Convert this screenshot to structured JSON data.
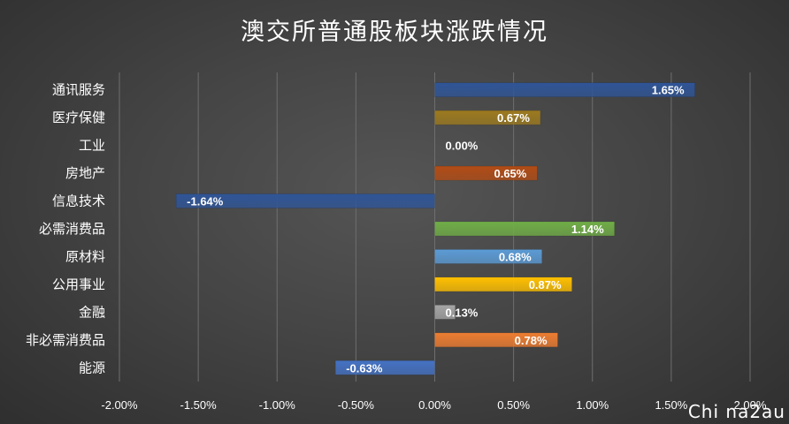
{
  "chart_data": {
    "type": "bar",
    "orientation": "horizontal",
    "title": "澳交所普通股板块涨跌情况",
    "categories": [
      "通讯服务",
      "医疗保健",
      "工业",
      "房地产",
      "信息技术",
      "必需消费品",
      "原材料",
      "公用事业",
      "金融",
      "非必需消费品",
      "能源"
    ],
    "values": [
      1.65,
      0.67,
      0.0,
      0.65,
      -1.64,
      1.14,
      0.68,
      0.87,
      0.13,
      0.78,
      -0.63
    ],
    "value_labels": [
      "1.65%",
      "0.67%",
      "0.00%",
      "0.65%",
      "-1.64%",
      "1.14%",
      "0.68%",
      "0.87%",
      "0.13%",
      "0.78%",
      "-0.63%"
    ],
    "colors": [
      "#2f5597",
      "#9c7a1f",
      "#a5a5a5",
      "#b24c15",
      "#2f5597",
      "#70ad47",
      "#5b9bd5",
      "#ffc000",
      "#a5a5a5",
      "#ed7d31",
      "#4472c4"
    ],
    "xlim": [
      -2.0,
      2.0
    ],
    "xticks": [
      "-2.00%",
      "-1.50%",
      "-1.00%",
      "-0.50%",
      "0.00%",
      "0.50%",
      "1.00%",
      "1.50%",
      "2.00%"
    ],
    "grid": "vertical"
  },
  "watermark": "Chi na2au"
}
